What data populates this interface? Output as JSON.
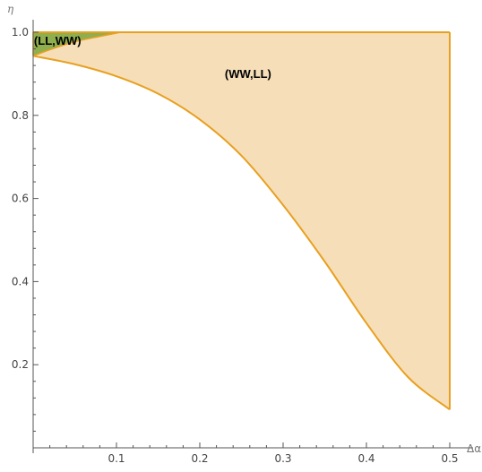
{
  "chart_data": {
    "type": "area",
    "xlabel": "Δα",
    "ylabel": "η",
    "xlim": [
      0,
      0.5
    ],
    "ylim": [
      0,
      1.0
    ],
    "x_ticks": [
      0.1,
      0.2,
      0.3,
      0.4,
      0.5
    ],
    "x_tick_labels": [
      "0.1",
      "0.2",
      "0.3",
      "0.4",
      "0.5"
    ],
    "y_ticks": [
      0.2,
      0.4,
      0.6,
      0.8,
      1.0
    ],
    "y_tick_labels": [
      "0.2",
      "0.4",
      "0.6",
      "0.8",
      "1.0"
    ],
    "grid": false,
    "colors": {
      "ww_ll_fill": "#f5deb8",
      "ll_ww_fill": "#8fae4e",
      "boundary": "#e8a020",
      "axis": "#555555"
    },
    "regions": [
      {
        "label": "(WW,LL)",
        "description_points": "bounded below by lower curve, above by eta=1.0, right by x=0.5",
        "lower_curve": [
          {
            "x": 0.0,
            "y": 0.943
          },
          {
            "x": 0.05,
            "y": 0.923
          },
          {
            "x": 0.1,
            "y": 0.894
          },
          {
            "x": 0.15,
            "y": 0.852
          },
          {
            "x": 0.2,
            "y": 0.79
          },
          {
            "x": 0.25,
            "y": 0.703
          },
          {
            "x": 0.3,
            "y": 0.584
          },
          {
            "x": 0.35,
            "y": 0.448
          },
          {
            "x": 0.4,
            "y": 0.3
          },
          {
            "x": 0.45,
            "y": 0.17
          },
          {
            "x": 0.5,
            "y": 0.092
          }
        ]
      },
      {
        "label": "(LL,WW)",
        "upper_curve_top": [
          {
            "x": 0.0,
            "y": 1.0
          },
          {
            "x": 0.105,
            "y": 1.0
          }
        ],
        "lower_boundary": [
          {
            "x": 0.0,
            "y": 0.943
          },
          {
            "x": 0.02,
            "y": 0.958
          },
          {
            "x": 0.05,
            "y": 0.977
          },
          {
            "x": 0.08,
            "y": 0.99
          },
          {
            "x": 0.105,
            "y": 1.0
          }
        ]
      }
    ]
  }
}
